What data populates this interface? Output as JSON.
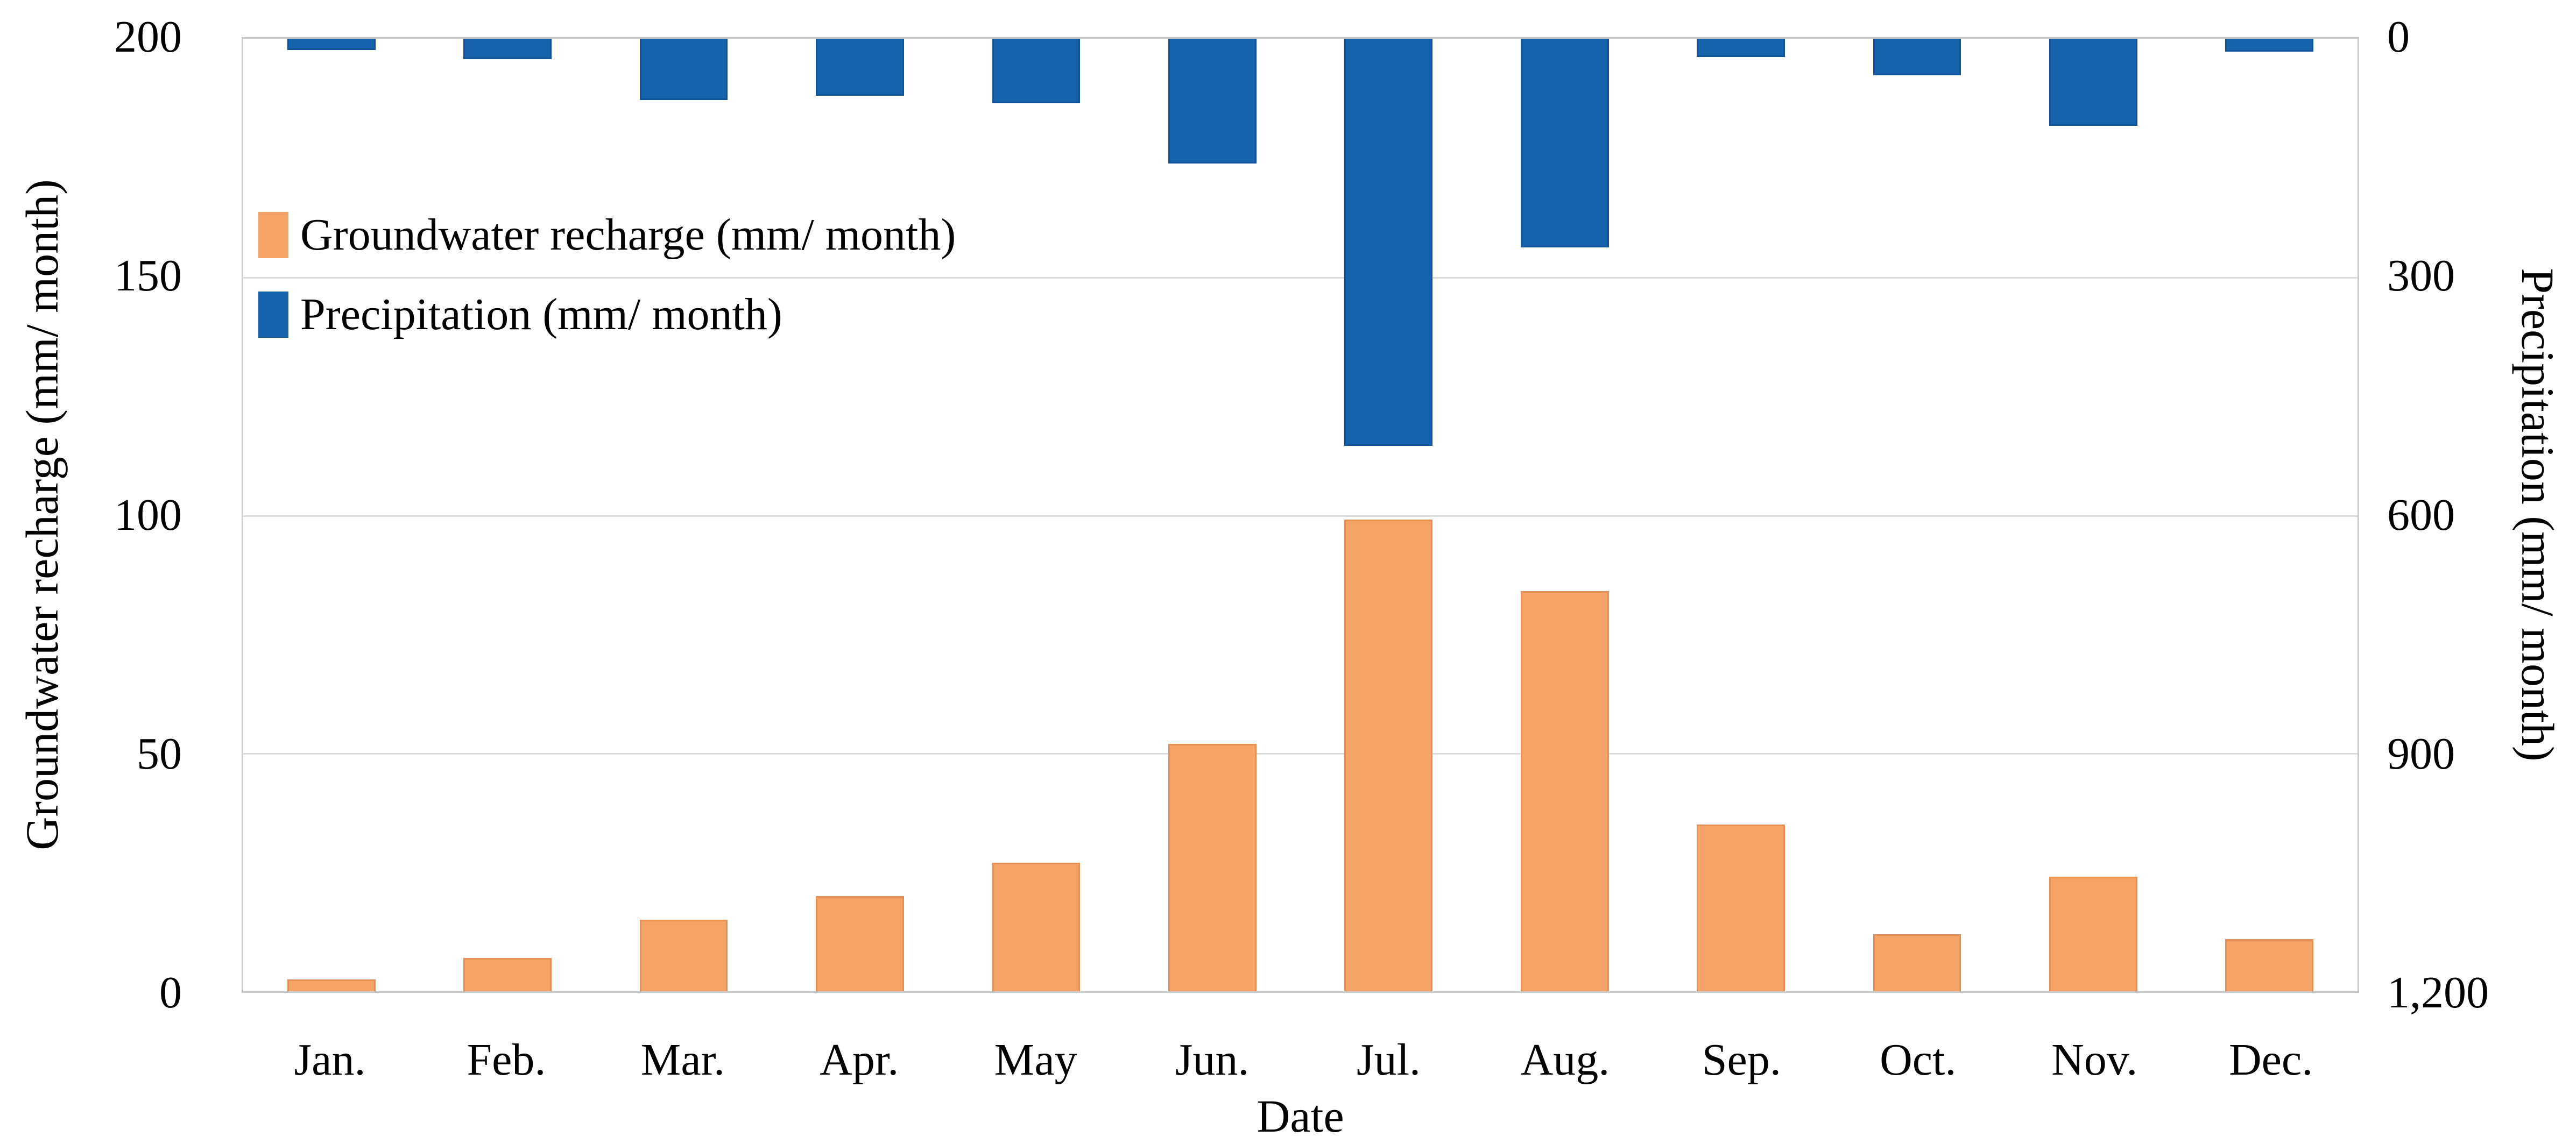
{
  "chart_data": {
    "type": "bar",
    "categories": [
      "Jan.",
      "Feb.",
      "Mar.",
      "Apr.",
      "May",
      "Jun.",
      "Jul.",
      "Aug.",
      "Sep.",
      "Oct.",
      "Nov.",
      "Dec."
    ],
    "series": [
      {
        "name": "Groundwater recharge (mm/ month)",
        "axis": "left",
        "color": "#f4a468",
        "values": [
          2.5,
          7,
          15,
          20,
          27,
          52,
          99,
          84,
          35,
          12,
          24,
          11
        ]
      },
      {
        "name": "Precipitation (mm/ month)",
        "axis": "right",
        "color": "#1663ac",
        "values": [
          14,
          26,
          77,
          72,
          81,
          157,
          513,
          263,
          23,
          46,
          110,
          16
        ]
      }
    ],
    "title": "",
    "xlabel": "Date",
    "ylabel_left": "Groundwater recharge (mm/ month)",
    "ylabel_right": "Precipitation (mm/ month)",
    "ylim_left": [
      0,
      200
    ],
    "ylim_right": [
      0,
      1200
    ],
    "right_axis_inverted": true,
    "left_ticks": [
      {
        "label": "200",
        "pct": 0
      },
      {
        "label": "150",
        "pct": 25
      },
      {
        "label": "100",
        "pct": 50
      },
      {
        "label": "50",
        "pct": 75
      },
      {
        "label": "0",
        "pct": 100
      }
    ],
    "right_ticks": [
      {
        "label": "0",
        "pct": 0
      },
      {
        "label": "300",
        "pct": 25
      },
      {
        "label": "600",
        "pct": 50
      },
      {
        "label": "900",
        "pct": 75
      },
      {
        "label": "1,200",
        "pct": 100
      }
    ],
    "gridline_pcts": [
      25,
      50,
      75
    ],
    "grid": true,
    "legend_position": "upper-left-inside"
  },
  "palette": {
    "plot_border": "#c9c9c9",
    "gridline": "#dcdcdc",
    "recharge_fill": "#f4a468",
    "recharge_border": "#e59155",
    "precip_fill": "#1663ac",
    "precip_border": "#11529b",
    "text": "#000000",
    "background": "#ffffff"
  }
}
